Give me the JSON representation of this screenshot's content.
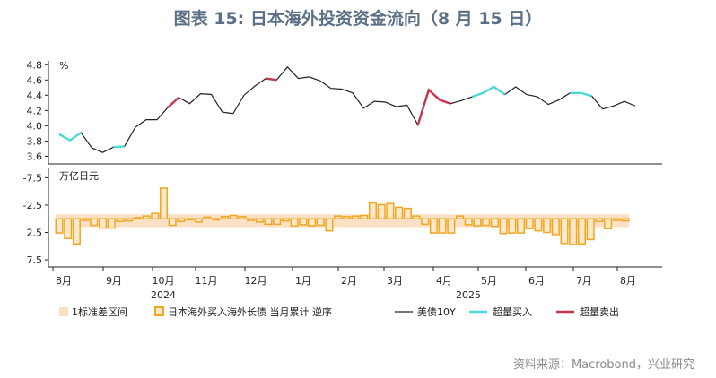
{
  "title": "图表 15: 日本海外投资资金流向（8 月 15 日）",
  "source": "资料来源：Macrobond，兴业研究",
  "colors": {
    "line": "#222222",
    "buy": "#4dd9d6",
    "sell": "#c8344d",
    "bar_stroke": "#f0a623",
    "bar_fill": "#fde9c9",
    "band": "#fbe1c4"
  },
  "chart_data": [
    {
      "type": "line",
      "unit": "%",
      "ylim": [
        3.5,
        4.85
      ],
      "yticks": [
        "3.6",
        "3.8",
        "4.0",
        "4.2",
        "4.4",
        "4.6",
        "4.8"
      ],
      "series": [
        {
          "name": "美债10Y",
          "values": [
            3.89,
            3.81,
            3.91,
            3.71,
            3.65,
            3.72,
            3.73,
            3.98,
            4.08,
            4.08,
            4.24,
            4.37,
            4.29,
            4.42,
            4.41,
            4.18,
            4.16,
            4.4,
            4.52,
            4.62,
            4.6,
            4.77,
            4.62,
            4.64,
            4.59,
            4.49,
            4.48,
            4.43,
            4.23,
            4.32,
            4.31,
            4.25,
            4.27,
            4.01,
            4.47,
            4.34,
            4.29,
            4.33,
            4.38,
            4.43,
            4.51,
            4.41,
            4.51,
            4.41,
            4.38,
            4.28,
            4.34,
            4.43,
            4.43,
            4.39,
            4.22,
            4.26,
            4.32,
            4.26
          ]
        }
      ],
      "buy_segments": [
        [
          0,
          2
        ],
        [
          5,
          6
        ],
        [
          38,
          41
        ],
        [
          47,
          49
        ]
      ],
      "sell_segments": [
        [
          10,
          11
        ],
        [
          19,
          20
        ],
        [
          33,
          36
        ]
      ]
    },
    {
      "type": "bar",
      "unit": "万亿日元",
      "ylim": [
        -9.2,
        8.8
      ],
      "yticks": [
        "-7.5",
        "-2.5",
        "2.5",
        "7.5"
      ],
      "band": [
        -0.82,
        1.53
      ],
      "values": [
        2.6,
        3.6,
        4.6,
        0.3,
        1.2,
        1.7,
        1.7,
        0.5,
        0.4,
        -0.2,
        -0.5,
        -1.0,
        -5.6,
        1.2,
        0.5,
        0.2,
        0.6,
        -0.3,
        0.2,
        -0.4,
        -0.6,
        -0.4,
        0.3,
        0.6,
        1.0,
        1.0,
        0.4,
        1.3,
        1.1,
        1.3,
        1.2,
        2.2,
        -0.5,
        -0.4,
        -0.5,
        -0.6,
        -2.9,
        -2.6,
        -2.8,
        -2.1,
        -1.9,
        -0.5,
        1.0,
        2.6,
        2.6,
        2.6,
        -0.5,
        1.1,
        1.3,
        1.2,
        1.4,
        2.7,
        2.6,
        2.6,
        1.8,
        2.2,
        2.5,
        2.9,
        4.5,
        4.7,
        4.6,
        3.8,
        0.5,
        1.8,
        0.3,
        0.4
      ]
    }
  ],
  "x_axis": {
    "months": [
      "8月",
      "9月",
      "10月",
      "11月",
      "12月",
      "1月",
      "2月",
      "3月",
      "4月",
      "5月",
      "6月",
      "7月",
      "8月"
    ],
    "years": [
      "2024",
      "2025"
    ]
  },
  "legend": {
    "band": "1标准差区间",
    "bars": "日本海外买入海外长债 当月累计 逆序",
    "line": "美债10Y",
    "buy": "超量买入",
    "sell": "超量卖出"
  }
}
